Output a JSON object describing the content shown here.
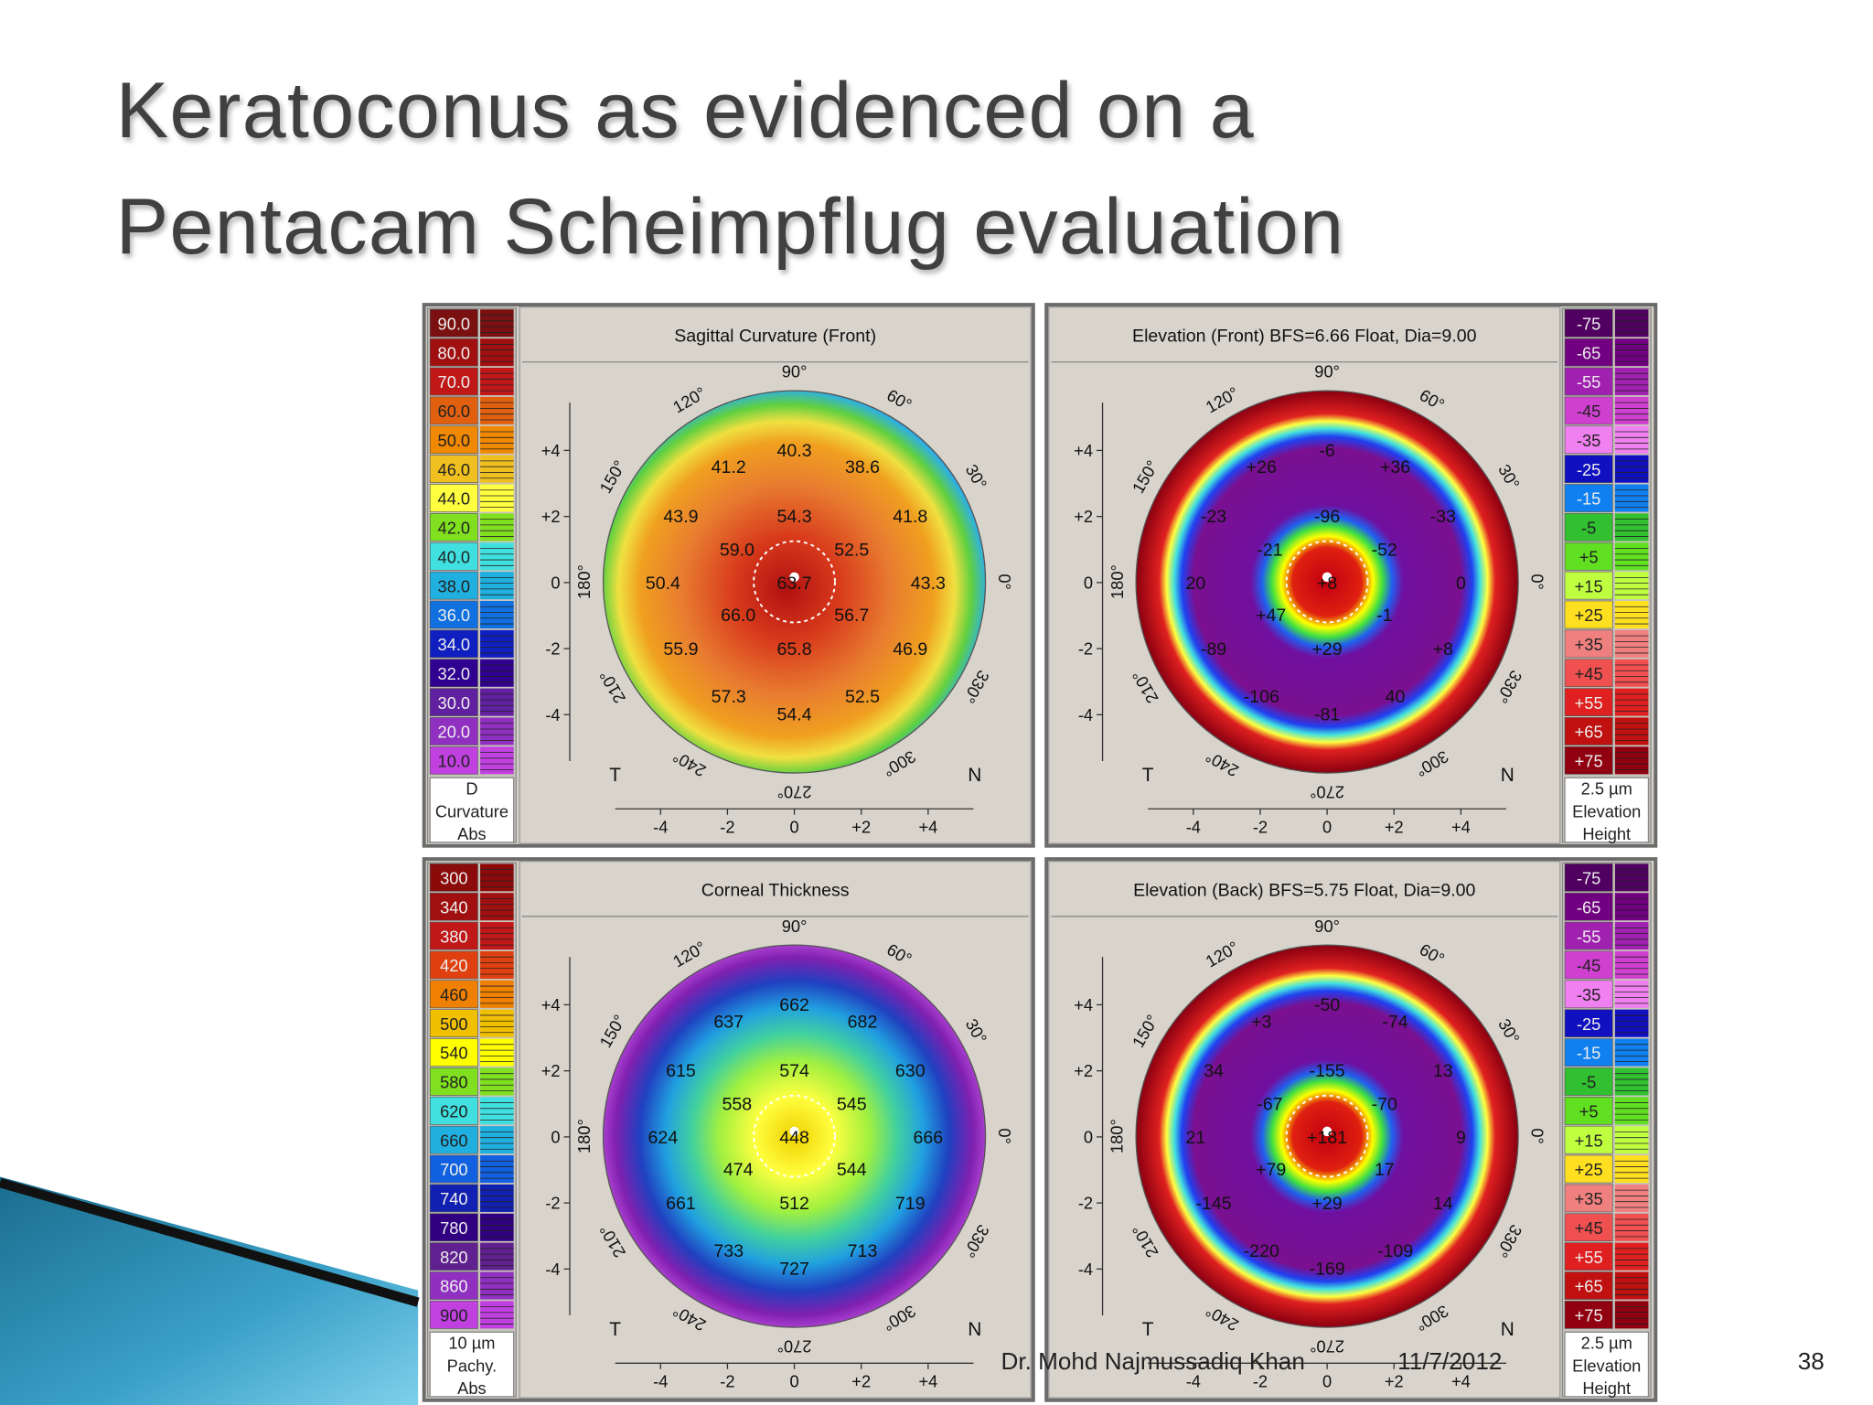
{
  "title": {
    "lines": [
      "Keratoconus as evidenced on a",
      "Pentacam Scheimpflug evaluation"
    ]
  },
  "footer": {
    "author": "Dr. Mohd Najmussadiq Khan",
    "date": "11/7/2012",
    "page": "38"
  },
  "map_axes": {
    "angles": [
      "90°",
      "60°",
      "30°",
      "0°",
      "330°",
      "300°",
      "270°",
      "240°",
      "210°",
      "180°",
      "150°",
      "120°"
    ],
    "y_ticks": [
      "+4",
      "+2",
      "0",
      "-2",
      "-4"
    ],
    "x_ticks": [
      "-4",
      "-2",
      "0",
      "+2",
      "+4"
    ],
    "left": "T",
    "right": "N"
  },
  "panels": [
    {
      "title": "Sagittal Curvature (Front)",
      "scale": {
        "labels": [
          "90.0",
          "80.0",
          "70.0",
          "60.0",
          "50.0",
          "46.0",
          "44.0",
          "42.0",
          "40.0",
          "38.0",
          "36.0",
          "34.0",
          "32.0",
          "30.0",
          "20.0",
          "10.0"
        ],
        "footer": [
          "D",
          "Curvature",
          "Abs"
        ]
      },
      "readings": [
        "40.3",
        "41.2",
        "38.6",
        "43.9",
        "54.3",
        "41.8",
        "59.0",
        "52.5",
        "50.4",
        "63.7",
        "43.3",
        "66.0",
        "56.7",
        "55.9",
        "65.8",
        "46.9",
        "57.3",
        "52.5",
        "54.4"
      ]
    },
    {
      "title": "Elevation (Front)  BFS=6.66 Float, Dia=9.00",
      "scale": {
        "labels": [
          "-75",
          "-65",
          "-55",
          "-45",
          "-35",
          "-25",
          "-15",
          "-5",
          "+5",
          "+15",
          "+25",
          "+35",
          "+45",
          "+55",
          "+65",
          "+75"
        ],
        "footer": [
          "2.5 µm",
          "Elevation",
          "Height"
        ]
      },
      "readings": [
        "-6",
        "+26",
        "+36",
        "-23",
        "-96",
        "-33",
        "-21",
        "-52",
        "20",
        "+8",
        "0",
        "+47",
        "-1",
        "-89",
        "+29",
        "+8",
        "-106",
        "40",
        "-81"
      ]
    },
    {
      "title": "Corneal Thickness",
      "scale": {
        "labels": [
          "300",
          "340",
          "380",
          "420",
          "460",
          "500",
          "540",
          "580",
          "620",
          "660",
          "700",
          "740",
          "780",
          "820",
          "860",
          "900"
        ],
        "footer": [
          "10 µm",
          "Pachy.",
          "Abs"
        ]
      },
      "readings": [
        "662",
        "637",
        "682",
        "615",
        "574",
        "630",
        "558",
        "545",
        "624",
        "448",
        "666",
        "474",
        "544",
        "661",
        "512",
        "719",
        "733",
        "713",
        "727"
      ]
    },
    {
      "title": "Elevation (Back)  BFS=5.75 Float, Dia=9.00",
      "scale": {
        "labels": [
          "-75",
          "-65",
          "-55",
          "-45",
          "-35",
          "-25",
          "-15",
          "-5",
          "+5",
          "+15",
          "+25",
          "+35",
          "+45",
          "+55",
          "+65",
          "+75"
        ],
        "footer": [
          "2.5 µm",
          "Elevation",
          "Height"
        ]
      },
      "readings": [
        "-50",
        "+3",
        "-74",
        "34",
        "-155",
        "13",
        "-67",
        "-70",
        "21",
        "+181",
        "9",
        "+79",
        "17",
        "-145",
        "+29",
        "14",
        "-220",
        "-109",
        "-169"
      ]
    }
  ]
}
